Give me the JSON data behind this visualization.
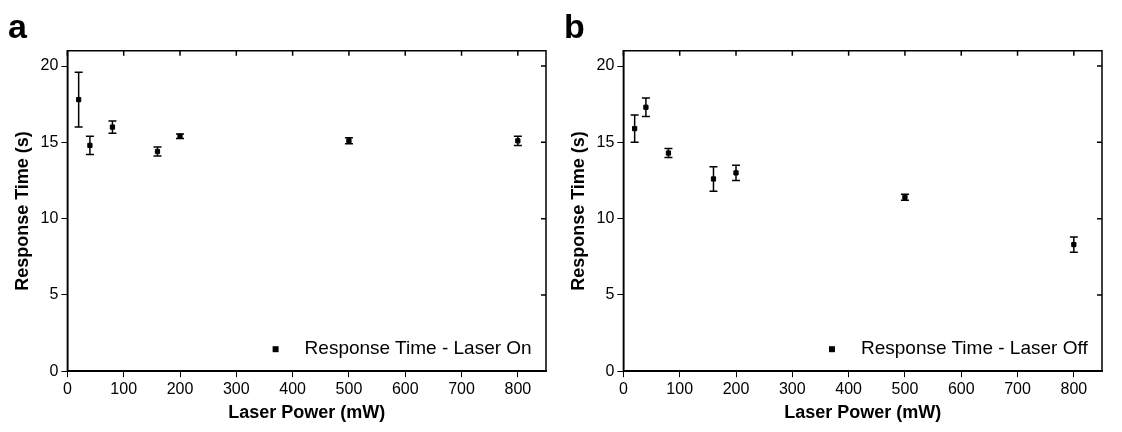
{
  "chart_data": [
    {
      "type": "scatter",
      "title": "a",
      "xlabel": "Laser Power (mW)",
      "ylabel": "Response Time (s)",
      "x": [
        20,
        40,
        80,
        160,
        200,
        500,
        800
      ],
      "series": [
        {
          "name": "Response Time - Laser On",
          "color": "#000000",
          "values": [
            17.8,
            14.8,
            16.0,
            14.4,
            15.4,
            15.1,
            15.1
          ],
          "errors": [
            1.8,
            0.6,
            0.4,
            0.3,
            0.15,
            0.2,
            0.3
          ]
        }
      ],
      "xlim": [
        0,
        850
      ],
      "xticks": [
        0,
        100,
        200,
        300,
        400,
        500,
        600,
        700,
        800
      ],
      "ylim": [
        0,
        21
      ],
      "yticks": [
        0,
        5,
        10,
        15,
        20
      ],
      "marker": "square",
      "legend": "bottom right",
      "grid": false
    },
    {
      "type": "scatter",
      "title": "b",
      "xlabel": "Laser Power (mW)",
      "ylabel": "Response Time (s)",
      "x": [
        20,
        40,
        80,
        160,
        200,
        500,
        800
      ],
      "series": [
        {
          "name": "Response Time - Laser Off",
          "color": "#000000",
          "values": [
            15.9,
            17.3,
            14.3,
            12.6,
            13.0,
            11.4,
            8.3
          ],
          "errors": [
            0.9,
            0.6,
            0.3,
            0.8,
            0.5,
            0.2,
            0.5
          ]
        }
      ],
      "xlim": [
        0,
        850
      ],
      "xticks": [
        0,
        100,
        200,
        300,
        400,
        500,
        600,
        700,
        800
      ],
      "ylim": [
        0,
        21
      ],
      "yticks": [
        0,
        5,
        10,
        15,
        20
      ],
      "marker": "square",
      "legend": "bottom right",
      "grid": false
    }
  ]
}
